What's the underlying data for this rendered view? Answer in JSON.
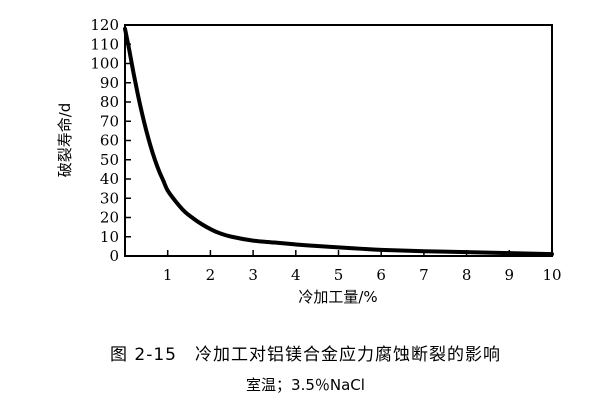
{
  "chart_data": {
    "type": "line",
    "xlabel": "冷加工量/%",
    "ylabel": "破裂寿命/d",
    "xlim": [
      0,
      10
    ],
    "ylim": [
      0,
      120
    ],
    "xticks": [
      1,
      2,
      3,
      4,
      5,
      6,
      7,
      8,
      9,
      10
    ],
    "yticks": [
      0,
      10,
      20,
      30,
      40,
      50,
      60,
      70,
      80,
      90,
      100,
      110,
      120
    ],
    "grid": false,
    "series": [
      {
        "x": [
          0,
          0.1,
          0.2,
          0.3,
          0.4,
          0.5,
          0.6,
          0.7,
          0.8,
          0.9,
          1.0,
          1.2,
          1.4,
          1.6,
          1.8,
          2.0,
          2.2,
          2.5,
          3.0,
          3.5,
          4.0,
          4.5,
          5.0,
          5.5,
          6.0,
          7.0,
          8.0,
          9.0,
          10.0
        ],
        "y": [
          118,
          107,
          95,
          84,
          74,
          65,
          57,
          50,
          44,
          39,
          34,
          28,
          23,
          19.5,
          16.5,
          14,
          12,
          10,
          8,
          7,
          6,
          5.2,
          4.5,
          3.8,
          3.2,
          2.5,
          2.0,
          1.5,
          1.0
        ]
      }
    ]
  },
  "caption": {
    "title": "图 2-15　冷加工对铝镁合金应力腐蚀断裂的影响",
    "subtitle": "室温；3.5％NaCl"
  }
}
